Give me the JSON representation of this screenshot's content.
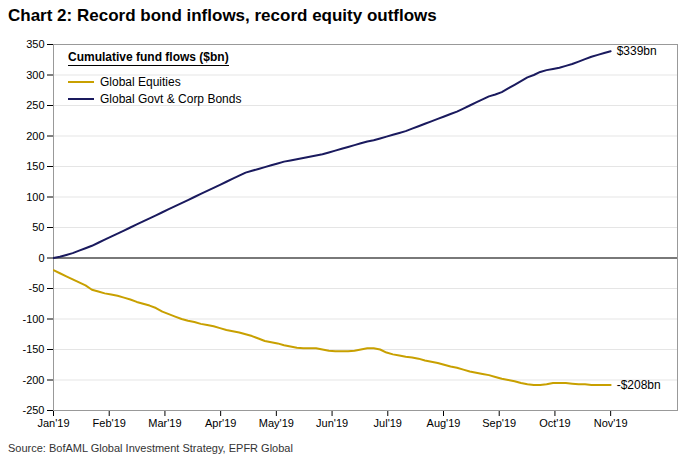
{
  "chart_data": {
    "type": "line",
    "title": "Chart 2: Record bond inflows, record equity outflows",
    "subtitle": "Cumulative fund flows ($bn)",
    "source": "Source: BofAML Global Investment Strategy, EPFR Global",
    "x": [
      0,
      0.1149,
      0.2299,
      0.3448,
      0.4598,
      0.5747,
      0.6897,
      0.8046,
      0.9195,
      1.0345,
      1.1494,
      1.2644,
      1.3793,
      1.4943,
      1.6092,
      1.7241,
      1.8391,
      1.954,
      2.069,
      2.1839,
      2.2989,
      2.4138,
      2.5287,
      2.6437,
      2.7586,
      2.8736,
      2.9885,
      3.1034,
      3.2184,
      3.3333,
      3.4483,
      3.5632,
      3.6782,
      3.7931,
      3.908,
      4.023,
      4.1379,
      4.2529,
      4.3678,
      4.4828,
      4.5977,
      4.7126,
      4.8276,
      4.9425,
      5.0575,
      5.1724,
      5.2874,
      5.4023,
      5.5172,
      5.6322,
      5.7471,
      5.8621,
      5.977,
      6.092,
      6.2069,
      6.3218,
      6.4368,
      6.5517,
      6.6667,
      6.7816,
      6.8966,
      7.0115,
      7.1264,
      7.2414,
      7.3563,
      7.4713,
      7.5862,
      7.7011,
      7.8161,
      7.931,
      8.046,
      8.1609,
      8.2759,
      8.3908,
      8.5057,
      8.6207,
      8.7356,
      8.8506,
      8.9655,
      9.0805,
      9.1954,
      9.3103,
      9.4253,
      9.5402,
      9.6552,
      9.7701,
      9.8851,
      10
    ],
    "xlim": [
      0,
      11.2
    ],
    "xticks": [
      {
        "value": 0,
        "label": "Jan'19"
      },
      {
        "value": 1,
        "label": "Feb'19"
      },
      {
        "value": 2,
        "label": "Mar'19"
      },
      {
        "value": 3,
        "label": "Apr'19"
      },
      {
        "value": 4,
        "label": "May'19"
      },
      {
        "value": 5,
        "label": "Jun'19"
      },
      {
        "value": 6,
        "label": "Jul'19"
      },
      {
        "value": 7,
        "label": "Aug'19"
      },
      {
        "value": 8,
        "label": "Sep'19"
      },
      {
        "value": 9,
        "label": "Oct'19"
      },
      {
        "value": 10,
        "label": "Nov'19"
      }
    ],
    "ylim": [
      -250,
      350
    ],
    "yticks": [
      -250,
      -200,
      -150,
      -100,
      -50,
      0,
      50,
      100,
      150,
      200,
      250,
      300,
      350
    ],
    "grid": "y",
    "legend": "upper left",
    "hlines": [
      0
    ],
    "series": [
      {
        "name": "Global Equities",
        "color": "#C8A000",
        "values": [
          -20,
          -25,
          -30,
          -35,
          -40,
          -45,
          -52,
          -55,
          -58,
          -60,
          -62,
          -65,
          -68,
          -72,
          -75,
          -78,
          -82,
          -88,
          -92,
          -96,
          -100,
          -103,
          -105,
          -108,
          -110,
          -112,
          -115,
          -118,
          -120,
          -122,
          -125,
          -128,
          -132,
          -136,
          -138,
          -140,
          -143,
          -145,
          -147,
          -148,
          -148,
          -148,
          -150,
          -152,
          -153,
          -153,
          -153,
          -152,
          -150,
          -148,
          -148,
          -150,
          -155,
          -158,
          -160,
          -162,
          -163,
          -165,
          -168,
          -170,
          -172,
          -175,
          -178,
          -180,
          -183,
          -186,
          -188,
          -190,
          -192,
          -195,
          -198,
          -200,
          -202,
          -205,
          -207,
          -208,
          -208,
          -207,
          -205,
          -205,
          -205,
          -206,
          -207,
          -207,
          -208,
          -208,
          -208,
          -208
        ]
      },
      {
        "name": "Global Govt & Corp Bonds",
        "color": "#1a1a5e",
        "values": [
          0,
          2,
          5,
          8,
          12,
          16,
          20,
          25,
          30,
          35,
          40,
          45,
          50,
          55,
          60,
          65,
          70,
          75,
          80,
          85,
          90,
          95,
          100,
          105,
          110,
          115,
          120,
          125,
          130,
          135,
          140,
          143,
          146,
          149,
          152,
          155,
          158,
          160,
          162,
          164,
          166,
          168,
          170,
          173,
          176,
          179,
          182,
          185,
          188,
          191,
          193,
          196,
          199,
          202,
          205,
          208,
          212,
          216,
          220,
          224,
          228,
          232,
          236,
          240,
          245,
          250,
          255,
          260,
          265,
          268,
          272,
          278,
          284,
          290,
          296,
          300,
          305,
          308,
          310,
          312,
          315,
          318,
          322,
          326,
          330,
          333,
          336,
          339
        ]
      }
    ],
    "annotations": [
      {
        "text": "$339bn",
        "x": 10,
        "y": 339
      },
      {
        "text": "-$208bn",
        "x": 10,
        "y": -208
      }
    ]
  }
}
